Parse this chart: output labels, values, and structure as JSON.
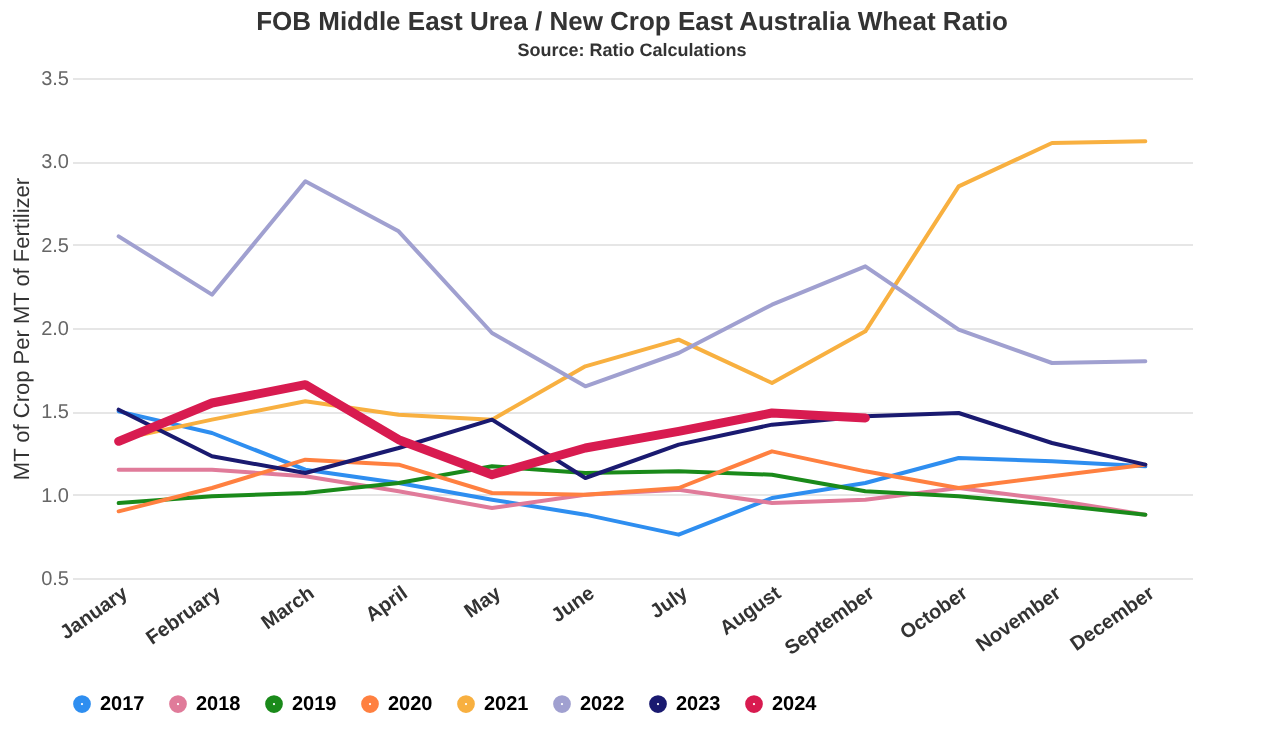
{
  "chart_data": {
    "type": "line",
    "title": "FOB Middle East Urea / New Crop East Australia Wheat Ratio",
    "subtitle": "Source: Ratio Calculations",
    "ylabel": "MT of Crop Per MT of Fertilizer",
    "categories": [
      "January",
      "February",
      "March",
      "April",
      "May",
      "June",
      "July",
      "August",
      "September",
      "October",
      "November",
      "December"
    ],
    "ylim": [
      0.5,
      3.5
    ],
    "yticks": [
      0.5,
      {
        "value": 1,
        "label": "1.0"
      },
      1.5,
      {
        "value": 2,
        "label": "2.0"
      },
      2.5,
      {
        "value": 3,
        "label": "3.0"
      },
      3.5
    ],
    "grid": "y",
    "legend": "bottom",
    "marker": "none",
    "series": [
      {
        "name": "2017",
        "color": "#2e8ef0",
        "values": [
          1.5,
          1.37,
          1.15,
          1.07,
          0.97,
          0.88,
          0.76,
          0.98,
          1.07,
          1.22,
          1.2,
          1.17
        ]
      },
      {
        "name": "2018",
        "color": "#e07b9a",
        "values": [
          1.15,
          1.15,
          1.11,
          1.02,
          0.92,
          1.0,
          1.03,
          0.95,
          0.97,
          1.04,
          0.97,
          0.88
        ]
      },
      {
        "name": "2019",
        "color": "#1a8a1a",
        "values": [
          0.95,
          0.99,
          1.01,
          1.07,
          1.17,
          1.13,
          1.14,
          1.12,
          1.02,
          0.99,
          0.94,
          0.88
        ]
      },
      {
        "name": "2020",
        "color": "#ff8040",
        "values": [
          0.9,
          1.04,
          1.21,
          1.18,
          1.01,
          1.0,
          1.04,
          1.26,
          1.14,
          1.04,
          1.11,
          1.18
        ]
      },
      {
        "name": "2021",
        "color": "#f8b040",
        "values": [
          1.33,
          1.45,
          1.56,
          1.48,
          1.45,
          1.77,
          1.93,
          1.67,
          1.98,
          2.85,
          3.11,
          3.12
        ]
      },
      {
        "name": "2022",
        "color": "#a0a0d0",
        "values": [
          2.55,
          2.2,
          2.88,
          2.58,
          1.97,
          1.65,
          1.85,
          2.14,
          2.37,
          1.99,
          1.79,
          1.8
        ]
      },
      {
        "name": "2023",
        "color": "#1a1a70",
        "values": [
          1.51,
          1.23,
          1.13,
          1.28,
          1.45,
          1.1,
          1.3,
          1.42,
          1.47,
          1.49,
          1.31,
          1.18
        ]
      },
      {
        "name": "2024",
        "color": "#d81b50",
        "values": [
          1.32,
          1.55,
          1.66,
          1.33,
          1.12,
          1.28,
          1.38,
          1.49,
          1.46,
          null,
          null,
          null
        ]
      }
    ]
  }
}
